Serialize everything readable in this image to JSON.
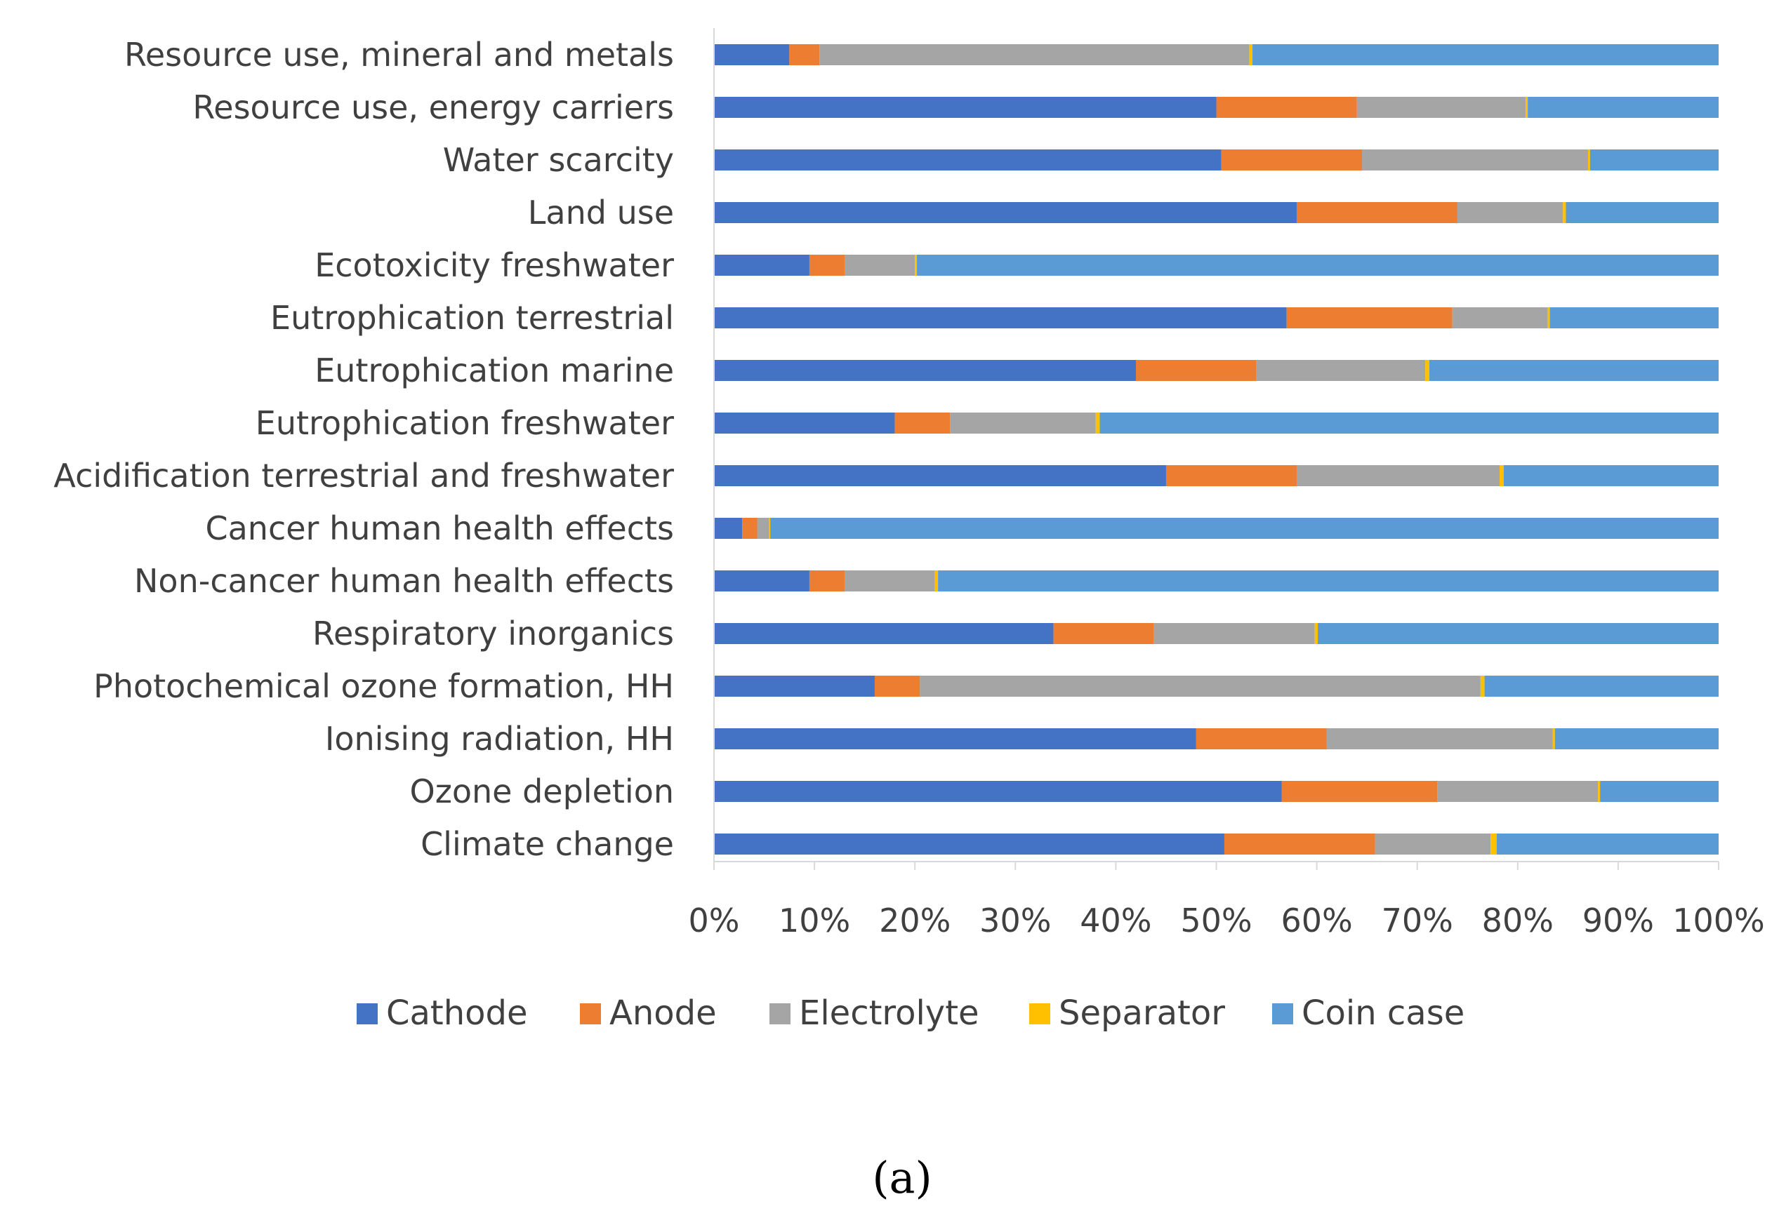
{
  "chart_data": {
    "type": "bar",
    "orientation": "horizontal",
    "stacked": "percent",
    "title": "",
    "xlabel": "",
    "ylabel": "",
    "xlim": [
      0,
      100
    ],
    "x_ticks": [
      "0%",
      "10%",
      "20%",
      "30%",
      "40%",
      "50%",
      "60%",
      "70%",
      "80%",
      "90%",
      "100%"
    ],
    "grid": false,
    "legend_position": "bottom",
    "categories": [
      "Resource use, mineral and metals",
      "Resource use, energy carriers",
      "Water scarcity",
      "Land use",
      "Ecotoxicity freshwater",
      "Eutrophication terrestrial",
      "Eutrophication marine",
      "Eutrophication freshwater",
      "Acidification terrestrial and freshwater",
      "Cancer human health effects",
      "Non-cancer human health effects",
      "Respiratory inorganics",
      "Photochemical ozone formation, HH",
      "Ionising radiation, HH",
      "Ozone depletion",
      "Climate change"
    ],
    "series": [
      {
        "name": "Cathode",
        "color": "#4472C4",
        "values": [
          7.5,
          50,
          50.5,
          58,
          9.5,
          57,
          42,
          18,
          45,
          2.8,
          9.5,
          33.8,
          16,
          48,
          56.5,
          50.8
        ]
      },
      {
        "name": "Anode",
        "color": "#ED7D31",
        "values": [
          3,
          14,
          14,
          16,
          3.5,
          16.5,
          12,
          5.5,
          13,
          1.5,
          3.5,
          10,
          4.5,
          13,
          15.5,
          15
        ]
      },
      {
        "name": "Electrolyte",
        "color": "#A5A5A5",
        "values": [
          42.8,
          16.8,
          22.5,
          10.5,
          7,
          9.5,
          16.8,
          14.5,
          20.2,
          1.2,
          9,
          16,
          55.8,
          22.5,
          16,
          11.5
        ]
      },
      {
        "name": "Separator",
        "color": "#FFC000",
        "values": [
          0.3,
          0.2,
          0.2,
          0.3,
          0.2,
          0.2,
          0.4,
          0.4,
          0.4,
          0.1,
          0.3,
          0.3,
          0.4,
          0.2,
          0.2,
          0.6
        ]
      },
      {
        "name": "Coin case",
        "color": "#5B9BD5",
        "values": [
          46.4,
          19,
          12.8,
          15.2,
          79.8,
          16.8,
          28.8,
          61.6,
          21.4,
          94.4,
          77.7,
          39.9,
          23.3,
          16.3,
          11.8,
          22.1
        ]
      }
    ]
  },
  "caption": "(a)",
  "colors": {
    "axis": "#D9D9D9",
    "text": "#404040",
    "background": "#FFFFFF"
  }
}
